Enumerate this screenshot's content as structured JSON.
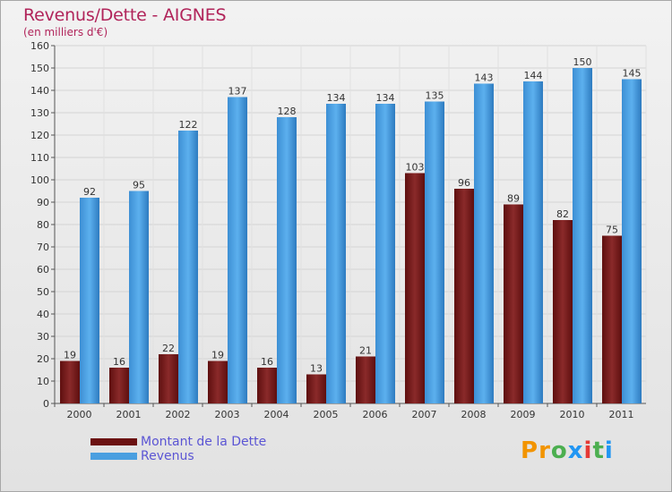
{
  "brand": {
    "text": "Proxiti",
    "colors": [
      "#f29400",
      "#f29400",
      "#4caf50",
      "#2196f3",
      "#e53935",
      "#4caf50",
      "#2196f3"
    ]
  },
  "colors": {
    "debt": "#7b1c1c",
    "revenue": "#4a9fe0",
    "title": "#b1245a",
    "legend_text": "#5b55d4"
  },
  "chart_data": {
    "type": "bar",
    "title": "Revenus/Dette - AIGNES",
    "subtitle": "(en milliers d'€)",
    "categories": [
      "2000",
      "2001",
      "2002",
      "2003",
      "2004",
      "2005",
      "2006",
      "2007",
      "2008",
      "2009",
      "2010",
      "2011"
    ],
    "series": [
      {
        "name": "Montant de la Dette",
        "values": [
          19,
          16,
          22,
          19,
          16,
          13,
          21,
          103,
          96,
          89,
          82,
          75
        ]
      },
      {
        "name": "Revenus",
        "values": [
          92,
          95,
          122,
          137,
          128,
          134,
          134,
          135,
          143,
          144,
          150,
          145
        ]
      }
    ],
    "ylim": [
      0,
      160
    ],
    "yticks": [
      0,
      10,
      20,
      30,
      40,
      50,
      60,
      70,
      80,
      90,
      100,
      110,
      120,
      130,
      140,
      150,
      160
    ],
    "grid": true,
    "legend_position": "bottom-left"
  }
}
